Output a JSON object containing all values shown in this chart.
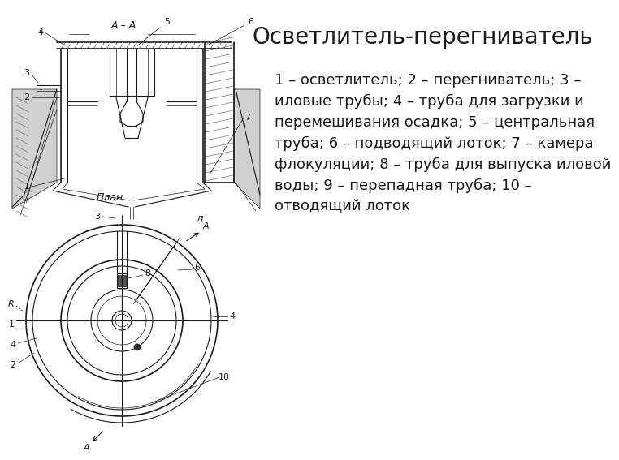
{
  "title": "Осветлитель-перегниватель",
  "description": "1 – осветлитель; 2 – перегниватель; 3 –\nиловые трубы; 4 – труба для загрузки и\nперемешивания осадка; 5 – центральная\nтруба; 6 – подводящий лоток; 7 – камера\nфлокуляции; 8 – труба для выпуска иловой\nводы; 9 – перепадная труба; 10 –\nотводящий лоток",
  "title_fontsize": 20,
  "desc_fontsize": 13,
  "bg_color": "#ffffff",
  "line_color": "#1a1a1a",
  "text_color": "#1a1a1a",
  "section_label": "А – А",
  "plan_label": "План",
  "fig_width": 7.2,
  "fig_height": 5.4
}
